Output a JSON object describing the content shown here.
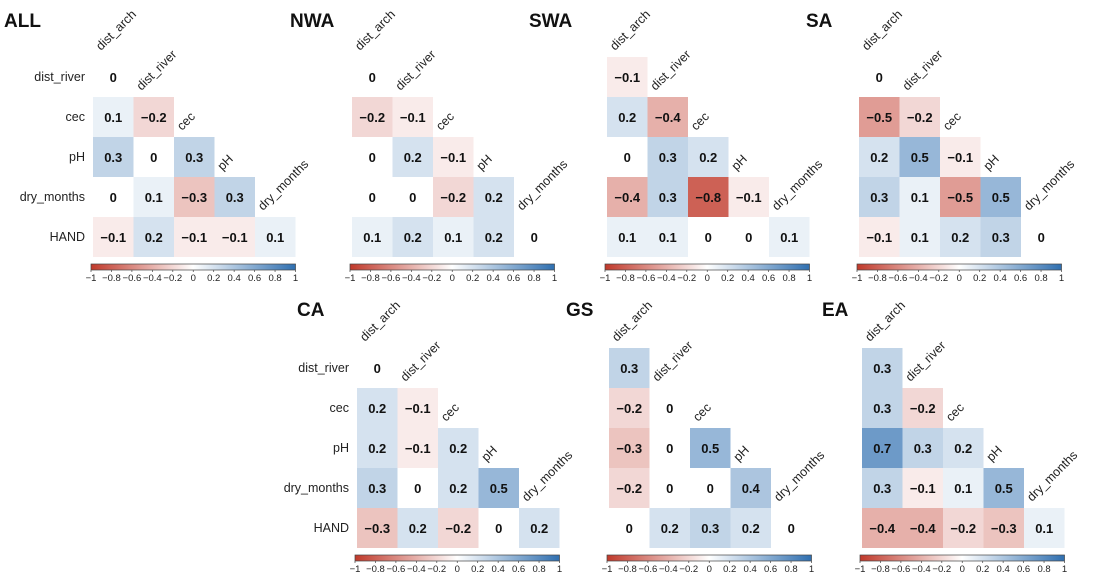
{
  "chart_data": [
    {
      "type": "heatmap",
      "title": "ALL",
      "variables": [
        "dist_arch",
        "dist_river",
        "cec",
        "pH",
        "dry_months",
        "HAND"
      ],
      "values": [
        [
          0
        ],
        [
          0.1,
          -0.2
        ],
        [
          0.3,
          0,
          0.3
        ],
        [
          0,
          0.1,
          -0.3,
          0.3
        ],
        [
          -0.1,
          0.2,
          -0.1,
          -0.1,
          0.1
        ]
      ],
      "colorbar": {
        "range": [
          -1,
          1
        ],
        "ticks": [
          "−1",
          "−0.8",
          "−0.6",
          "−0.4",
          "−0.2",
          "0",
          "0.2",
          "0.4",
          "0.6",
          "0.8",
          "1"
        ]
      }
    },
    {
      "type": "heatmap",
      "title": "NWA",
      "variables": [
        "dist_arch",
        "dist_river",
        "cec",
        "pH",
        "dry_months",
        "HAND"
      ],
      "values": [
        [
          0
        ],
        [
          -0.2,
          -0.1
        ],
        [
          0,
          0.2,
          -0.1
        ],
        [
          0,
          0,
          -0.2,
          0.2
        ],
        [
          0.1,
          0.2,
          0.1,
          0.2,
          0
        ]
      ],
      "colorbar": {
        "range": [
          -1,
          1
        ],
        "ticks": [
          "−1",
          "−0.8",
          "−0.6",
          "−0.4",
          "−0.2",
          "0",
          "0.2",
          "0.4",
          "0.6",
          "0.8",
          "1"
        ]
      }
    },
    {
      "type": "heatmap",
      "title": "SWA",
      "variables": [
        "dist_arch",
        "dist_river",
        "cec",
        "pH",
        "dry_months",
        "HAND"
      ],
      "values": [
        [
          -0.1
        ],
        [
          0.2,
          -0.4
        ],
        [
          0,
          0.3,
          0.2
        ],
        [
          -0.4,
          0.3,
          -0.8,
          -0.1
        ],
        [
          0.1,
          0.1,
          0,
          0,
          0.1
        ]
      ],
      "colorbar": {
        "range": [
          -1,
          1
        ],
        "ticks": [
          "−1",
          "−0.8",
          "−0.6",
          "−0.4",
          "−0.2",
          "0",
          "0.2",
          "0.4",
          "0.6",
          "0.8",
          "1"
        ]
      }
    },
    {
      "type": "heatmap",
      "title": "SA",
      "variables": [
        "dist_arch",
        "dist_river",
        "cec",
        "pH",
        "dry_months",
        "HAND"
      ],
      "values": [
        [
          0
        ],
        [
          -0.5,
          -0.2
        ],
        [
          0.2,
          0.5,
          -0.1
        ],
        [
          0.3,
          0.1,
          -0.5,
          0.5
        ],
        [
          -0.1,
          0.1,
          0.2,
          0.3,
          0
        ]
      ],
      "colorbar": {
        "range": [
          -1,
          1
        ],
        "ticks": [
          "−1",
          "−0.8",
          "−0.6",
          "−0.4",
          "−0.2",
          "0",
          "0.2",
          "0.4",
          "0.6",
          "0.8",
          "1"
        ]
      }
    },
    {
      "type": "heatmap",
      "title": "CA",
      "variables": [
        "dist_arch",
        "dist_river",
        "cec",
        "pH",
        "dry_months",
        "HAND"
      ],
      "values": [
        [
          0
        ],
        [
          0.2,
          -0.1
        ],
        [
          0.2,
          -0.1,
          0.2
        ],
        [
          0.3,
          0,
          0.2,
          0.5
        ],
        [
          -0.3,
          0.2,
          -0.2,
          0,
          0.2
        ]
      ],
      "colorbar": {
        "range": [
          -1,
          1
        ],
        "ticks": [
          "−1",
          "−0.8",
          "−0.6",
          "−0.4",
          "−0.2",
          "0",
          "0.2",
          "0.4",
          "0.6",
          "0.8",
          "1"
        ]
      }
    },
    {
      "type": "heatmap",
      "title": "GS",
      "variables": [
        "dist_arch",
        "dist_river",
        "cec",
        "pH",
        "dry_months",
        "HAND"
      ],
      "values": [
        [
          0.3
        ],
        [
          -0.2,
          0
        ],
        [
          -0.3,
          0,
          0.5
        ],
        [
          -0.2,
          0,
          0,
          0.4
        ],
        [
          0,
          0.2,
          0.3,
          0.2,
          0
        ]
      ],
      "colorbar": {
        "range": [
          -1,
          1
        ],
        "ticks": [
          "−1",
          "−0.8",
          "−0.6",
          "−0.4",
          "−0.2",
          "0",
          "0.2",
          "0.4",
          "0.6",
          "0.8",
          "1"
        ]
      }
    },
    {
      "type": "heatmap",
      "title": "EA",
      "variables": [
        "dist_arch",
        "dist_river",
        "cec",
        "pH",
        "dry_months",
        "HAND"
      ],
      "values": [
        [
          0.3
        ],
        [
          0.3,
          -0.2
        ],
        [
          0.7,
          0.3,
          0.2
        ],
        [
          0.3,
          -0.1,
          0.1,
          0.5
        ],
        [
          -0.4,
          -0.4,
          -0.2,
          -0.3,
          0.1
        ]
      ],
      "colorbar": {
        "range": [
          -1,
          1
        ],
        "ticks": [
          "−1",
          "−0.8",
          "−0.6",
          "−0.4",
          "−0.2",
          "0",
          "0.2",
          "0.4",
          "0.6",
          "0.8",
          "1"
        ]
      }
    }
  ],
  "colors": {
    "negative": "#c0392b",
    "zero": "#ffffff",
    "positive": "#2f6fb0"
  }
}
